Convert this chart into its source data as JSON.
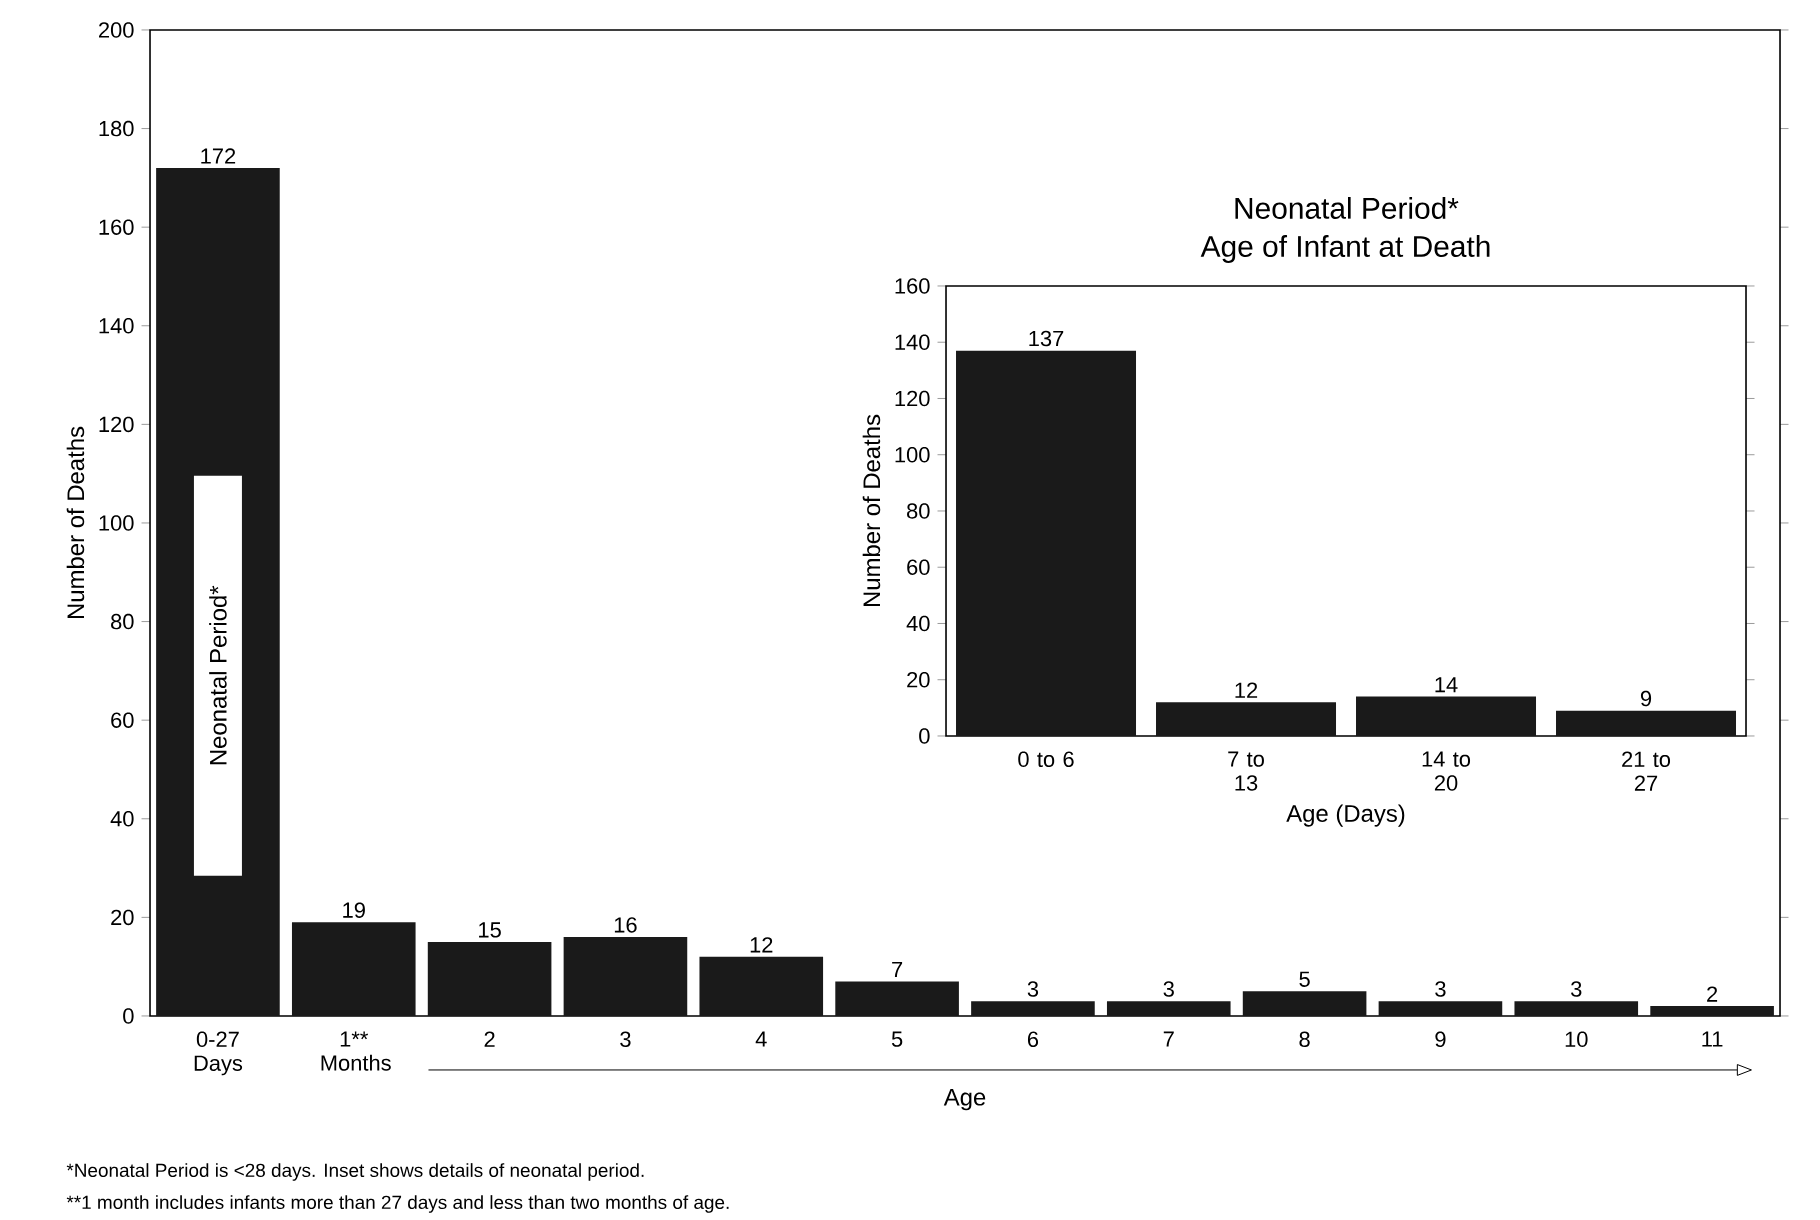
{
  "chart_data": [
    {
      "type": "bar",
      "xlabel": "Age",
      "ylabel": "Number of Deaths",
      "categories": [
        "0-27 Days",
        "1** Months",
        "2",
        "3",
        "4",
        "5",
        "6",
        "7",
        "8",
        "9",
        "10",
        "11"
      ],
      "values": [
        172,
        19,
        15,
        16,
        12,
        7,
        3,
        3,
        5,
        3,
        3,
        2
      ],
      "color": "#1a1a1a",
      "ylim": [
        0,
        200
      ],
      "yticks": [
        0,
        20,
        40,
        60,
        80,
        100,
        120,
        140,
        160,
        180,
        200
      ],
      "data_labels": true,
      "annotations": [
        "Neonatal Period*",
        "*Neonatal Period is <28 days.  Inset shows details of neonatal period.",
        "**1 month includes infants more than 27 days and less than two months of age."
      ]
    },
    {
      "type": "bar",
      "title": "Neonatal Period*",
      "subtitle": "Age of Infant at Death",
      "xlabel": "Age (Days)",
      "ylabel": "Number of Deaths",
      "categories": [
        "0 to 6",
        "7 to 13",
        "14 to 20",
        "21 to 27"
      ],
      "values": [
        137,
        12,
        14,
        9
      ],
      "color": "#1a1a1a",
      "ylim": [
        0,
        160
      ],
      "yticks": [
        0,
        20,
        40,
        60,
        80,
        100,
        120,
        140,
        160
      ],
      "data_labels": true
    }
  ]
}
